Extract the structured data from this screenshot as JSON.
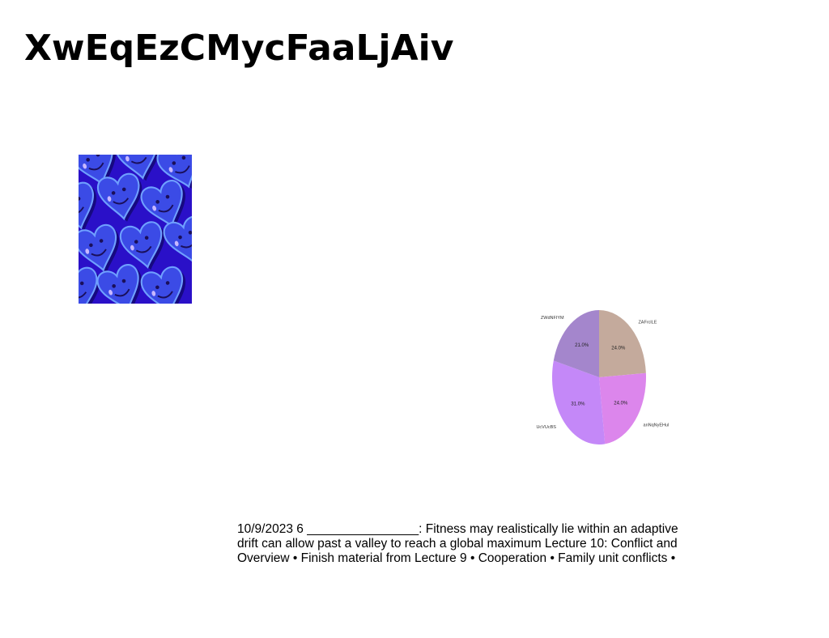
{
  "document": {
    "title": "XwEqEzCMycFaaLjAiv",
    "text_lines": [
      "10/9/2023 6 ________________: Fitness may realistically lie within an adaptive",
      "drift can allow past a valley to reach a global maximum Lecture 10: Conflict and",
      "Overview • Finish material from Lecture 9 • Cooperation • Family unit conflicts •"
    ]
  },
  "picture": {
    "icon": "heart-pattern-image",
    "colors": {
      "background": "#2a10c8",
      "heart": "#3b4be6",
      "heart_edge": "#6fa0ff",
      "shadow": "#12086e",
      "face": "#1a0f5a",
      "drop": "#c8b8ff"
    }
  },
  "chart_data": {
    "type": "pie",
    "title": "",
    "slices": [
      {
        "label": "ZAFrclLE",
        "value": 24.0,
        "display": "24.0%",
        "color": "#c4aa9c"
      },
      {
        "label": "anNqNyEHul",
        "value": 24.0,
        "display": "24.0%",
        "color": "#dc86ec"
      },
      {
        "label": "UcVUcBS",
        "value": 31.0,
        "display": "31.0%",
        "color": "#c488f8"
      },
      {
        "label": "ZWdNFIYM",
        "value": 21.0,
        "display": "21.0%",
        "color": "#a486cc"
      }
    ],
    "start": "top",
    "direction": "clockwise"
  }
}
